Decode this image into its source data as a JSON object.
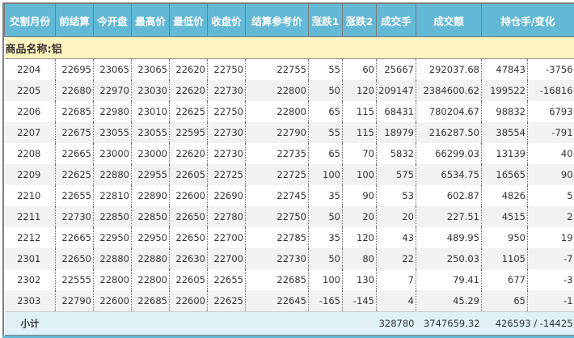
{
  "header": [
    "交割月份",
    "前结算",
    "今开盘",
    "最高价",
    "最低价",
    "收盘价",
    "结算参考价",
    "涨跌1",
    "涨跌2",
    "成交手",
    "成交额",
    "持仓手/变化"
  ],
  "product_label": "商品名称:铝",
  "rows": [
    [
      "2204",
      "22695",
      "23065",
      "23065",
      "22620",
      "22750",
      "22755",
      "55",
      "60",
      "25667",
      "292037.68",
      "47843",
      "-3756"
    ],
    [
      "2205",
      "22680",
      "22970",
      "23030",
      "22620",
      "22730",
      "22800",
      "50",
      "120",
      "209147",
      "2384600.62",
      "199522",
      "-16816"
    ],
    [
      "2206",
      "22685",
      "22980",
      "23010",
      "22625",
      "22750",
      "22800",
      "65",
      "115",
      "68431",
      "780204.67",
      "98832",
      "6793"
    ],
    [
      "2207",
      "22675",
      "23055",
      "23055",
      "22595",
      "22730",
      "22790",
      "55",
      "115",
      "18979",
      "216287.50",
      "38554",
      "-791"
    ],
    [
      "2208",
      "22665",
      "23000",
      "23000",
      "22620",
      "22730",
      "22735",
      "65",
      "70",
      "5832",
      "66299.03",
      "13139",
      "40"
    ],
    [
      "2209",
      "22625",
      "22880",
      "22955",
      "22605",
      "22725",
      "22725",
      "100",
      "100",
      "575",
      "6534.75",
      "16565",
      "90"
    ],
    [
      "2210",
      "22655",
      "22810",
      "22890",
      "22600",
      "22690",
      "22745",
      "35",
      "90",
      "53",
      "602.87",
      "4826",
      "5"
    ],
    [
      "2211",
      "22730",
      "22850",
      "22850",
      "22650",
      "22780",
      "22750",
      "50",
      "20",
      "20",
      "227.51",
      "4515",
      "2"
    ],
    [
      "2212",
      "22665",
      "22950",
      "22950",
      "22650",
      "22700",
      "22785",
      "35",
      "120",
      "43",
      "489.95",
      "950",
      "19"
    ],
    [
      "2301",
      "22650",
      "22880",
      "22880",
      "22630",
      "22700",
      "22730",
      "50",
      "80",
      "22",
      "250.03",
      "1105",
      "-7"
    ],
    [
      "2302",
      "22555",
      "22800",
      "22800",
      "22605",
      "22655",
      "22685",
      "100",
      "130",
      "7",
      "79.41",
      "677",
      "-3"
    ],
    [
      "2303",
      "22790",
      "22600",
      "22685",
      "22600",
      "22625",
      "22645",
      "-165",
      "-145",
      "4",
      "45.29",
      "65",
      "-1"
    ]
  ],
  "subtotal": {
    "label": "小计",
    "volume": "328780",
    "turnover": "3747659.32",
    "open_interest": "426593 / -14425"
  },
  "colors": {
    "header_bg": "#63b9d5",
    "product_bg": "#fff4bf",
    "subtotal_bg": "#dff0f7",
    "alt_row": "#f2f2f2"
  }
}
